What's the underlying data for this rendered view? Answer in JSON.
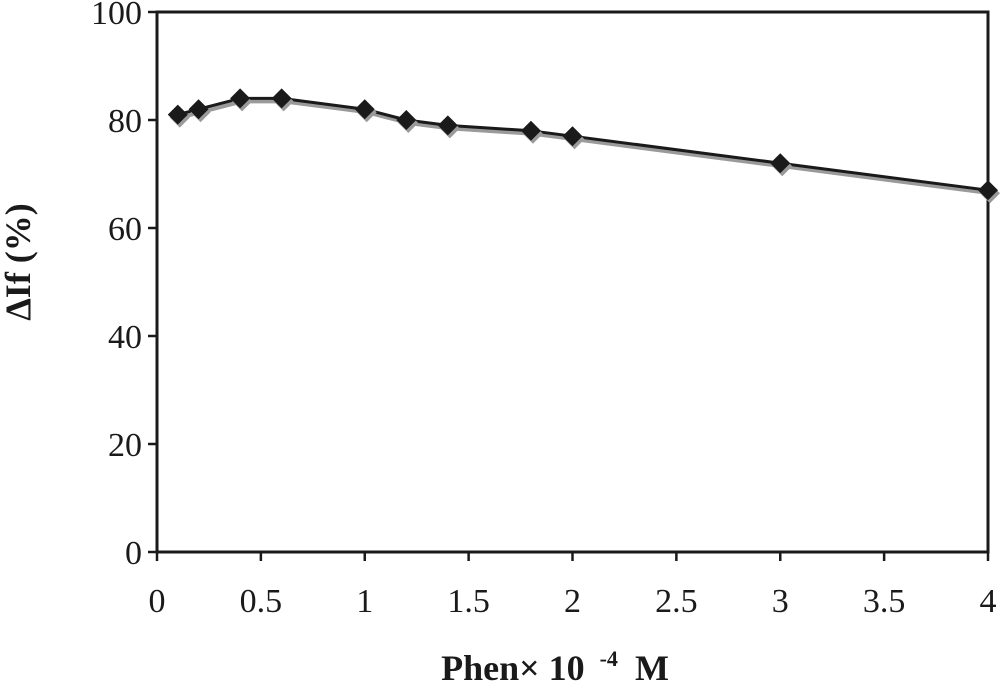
{
  "chart_data": {
    "type": "line",
    "title": "",
    "xlabel": "Phen× 10",
    "xlabel_exponent": "-4",
    "xlabel_unit": "M",
    "ylabel": "ΔIf (%)",
    "xlim": [
      0,
      4
    ],
    "ylim": [
      0,
      100
    ],
    "x_ticks": [
      "0",
      "0.5",
      "1",
      "1.5",
      "2",
      "2.5",
      "3",
      "3.5",
      "4"
    ],
    "y_ticks": [
      "0",
      "20",
      "40",
      "60",
      "80",
      "100"
    ],
    "grid": false,
    "legend": "none",
    "marker": "diamond",
    "line_color": "#1a1a1a",
    "shadow_color": "#9a9a9a",
    "series": [
      {
        "x": [
          0.1,
          0.2,
          0.4,
          0.6,
          1.0,
          1.2,
          1.4,
          1.8,
          2.0,
          3.0,
          4.0
        ],
        "y": [
          81,
          82,
          84,
          84,
          82,
          80,
          79,
          78,
          77,
          72,
          67
        ]
      }
    ]
  }
}
